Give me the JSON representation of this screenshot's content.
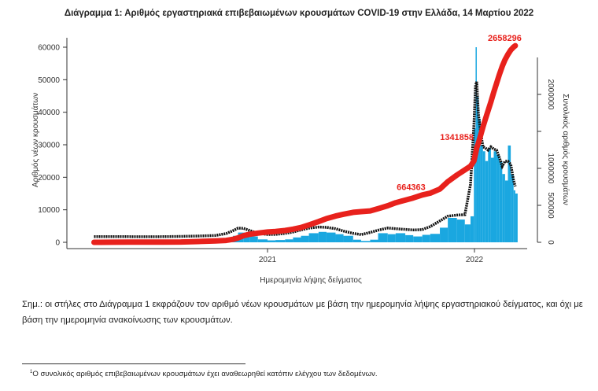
{
  "title": "Διάγραμμα 1: Αριθμός εργαστηριακά επιβεβαιωμένων κρουσμάτων COVID-19 στην Ελλάδα, 14 Μαρτίου 2022",
  "note": "Σημ.: οι στήλες στο Διάγραμμα 1 εκφράζουν τον αριθμό νέων κρουσμάτων με βάση την ημερομηνία λήψης εργαστηριακού δείγματος, και όχι με βάση την ημερομηνία ανακοίνωσης των κρουσμάτων.",
  "footnote": {
    "mark": "1",
    "text": "Ο συνολικός αριθμός επιβεβαιωμένων κρουσμάτων έχει αναθεωρηθεί κατόπιν ελέγχου των δεδομένων."
  },
  "chart_data": {
    "type": "bar+line",
    "title": "Διάγραμμα 1: Αριθμός εργαστηριακά επιβεβαιωμένων κρουσμάτων COVID-19 στην Ελλάδα, 14 Μαρτίου 2022",
    "xlabel": "Ημερομηνία λήψης δείγματος",
    "ylabel_left": "Αριθμός νέων κρουσμάτων",
    "ylabel_right": "Συνολικός αριθμός κρουσμάτων",
    "x_ticks": [
      "2021",
      "2022"
    ],
    "y_left_ticks": [
      0,
      10000,
      20000,
      30000,
      40000,
      50000,
      60000
    ],
    "y_right_ticks": [
      0,
      500000,
      1000000,
      1500000,
      2000000
    ],
    "y_right_tick_labels": [
      "0",
      "500000",
      "1000000",
      "",
      "2000000"
    ],
    "ylim_left": [
      0,
      60000
    ],
    "ylim_right": [
      0,
      2500000
    ],
    "grid": false,
    "colors": {
      "bars": "#1aa7e0",
      "cumulative": "#e8211c",
      "moving_average": "#111111"
    },
    "points": [
      {
        "date": "2020-03-01",
        "new": 10,
        "cum": 0
      },
      {
        "date": "2020-04-01",
        "new": 80,
        "cum": 1300
      },
      {
        "date": "2020-05-01",
        "new": 20,
        "cum": 2600
      },
      {
        "date": "2020-06-01",
        "new": 20,
        "cum": 2950
      },
      {
        "date": "2020-07-01",
        "new": 20,
        "cum": 3400
      },
      {
        "date": "2020-08-01",
        "new": 100,
        "cum": 4500
      },
      {
        "date": "2020-09-01",
        "new": 250,
        "cum": 10500
      },
      {
        "date": "2020-10-01",
        "new": 350,
        "cum": 19000
      },
      {
        "date": "2020-10-20",
        "new": 600,
        "cum": 26000
      },
      {
        "date": "2020-11-01",
        "new": 2000,
        "cum": 40000
      },
      {
        "date": "2020-11-10",
        "new": 3000,
        "cum": 60000
      },
      {
        "date": "2020-11-20",
        "new": 3000,
        "cum": 90000
      },
      {
        "date": "2020-12-01",
        "new": 1800,
        "cum": 110000
      },
      {
        "date": "2020-12-15",
        "new": 900,
        "cum": 125000
      },
      {
        "date": "2021-01-01",
        "new": 600,
        "cum": 139000
      },
      {
        "date": "2021-01-15",
        "new": 700,
        "cum": 147000
      },
      {
        "date": "2021-02-01",
        "new": 900,
        "cum": 160000
      },
      {
        "date": "2021-02-15",
        "new": 1500,
        "cum": 178000
      },
      {
        "date": "2021-03-01",
        "new": 2000,
        "cum": 200000
      },
      {
        "date": "2021-03-15",
        "new": 2800,
        "cum": 235000
      },
      {
        "date": "2021-04-01",
        "new": 3200,
        "cum": 280000
      },
      {
        "date": "2021-04-15",
        "new": 3000,
        "cum": 320000
      },
      {
        "date": "2021-05-01",
        "new": 2500,
        "cum": 355000
      },
      {
        "date": "2021-05-15",
        "new": 2000,
        "cum": 380000
      },
      {
        "date": "2021-06-01",
        "new": 800,
        "cum": 405000
      },
      {
        "date": "2021-06-15",
        "new": 400,
        "cum": 415000
      },
      {
        "date": "2021-07-01",
        "new": 800,
        "cum": 425000
      },
      {
        "date": "2021-07-15",
        "new": 2800,
        "cum": 455000
      },
      {
        "date": "2021-08-01",
        "new": 2500,
        "cum": 495000
      },
      {
        "date": "2021-08-15",
        "new": 2800,
        "cum": 535000
      },
      {
        "date": "2021-09-01",
        "new": 2200,
        "cum": 570000
      },
      {
        "date": "2021-09-15",
        "new": 1800,
        "cum": 600000
      },
      {
        "date": "2021-10-01",
        "new": 2300,
        "cum": 640000
      },
      {
        "date": "2021-10-15",
        "new": 2600,
        "cum": 664363,
        "label": "664363"
      },
      {
        "date": "2021-11-01",
        "new": 4500,
        "cum": 720000
      },
      {
        "date": "2021-11-15",
        "new": 7500,
        "cum": 820000
      },
      {
        "date": "2021-12-01",
        "new": 7000,
        "cum": 910000
      },
      {
        "date": "2021-12-15",
        "new": 5500,
        "cum": 980000
      },
      {
        "date": "2021-12-25",
        "new": 8000,
        "cum": 1030000
      },
      {
        "date": "2021-12-31",
        "new": 35000,
        "cum": 1100000
      },
      {
        "date": "2022-01-03",
        "new": 60000,
        "cum": 1200000
      },
      {
        "date": "2022-01-05",
        "new": 45000,
        "cum": 1280000
      },
      {
        "date": "2022-01-08",
        "new": 38000,
        "cum": 1341858,
        "label": "1341858"
      },
      {
        "date": "2022-01-12",
        "new": 30000,
        "cum": 1450000
      },
      {
        "date": "2022-01-16",
        "new": 28000,
        "cum": 1560000
      },
      {
        "date": "2022-01-20",
        "new": 25000,
        "cum": 1660000
      },
      {
        "date": "2022-01-25",
        "new": 29000,
        "cum": 1780000
      },
      {
        "date": "2022-01-30",
        "new": 26000,
        "cum": 1900000
      },
      {
        "date": "2022-02-04",
        "new": 28000,
        "cum": 2030000
      },
      {
        "date": "2022-02-09",
        "new": 27000,
        "cum": 2150000
      },
      {
        "date": "2022-02-14",
        "new": 25000,
        "cum": 2270000
      },
      {
        "date": "2022-02-19",
        "new": 21000,
        "cum": 2380000
      },
      {
        "date": "2022-02-24",
        "new": 19000,
        "cum": 2470000
      },
      {
        "date": "2022-03-01",
        "new": 29772,
        "cum": 2540000
      },
      {
        "date": "2022-03-06",
        "new": 21000,
        "cum": 2600000
      },
      {
        "date": "2022-03-11",
        "new": 16000,
        "cum": 2640000
      },
      {
        "date": "2022-03-14",
        "new": 15000,
        "cum": 2658296,
        "label": "2658296"
      }
    ]
  }
}
